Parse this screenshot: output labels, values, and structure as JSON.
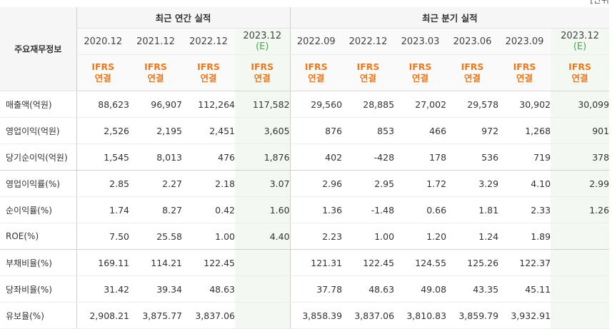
{
  "unit_note": "[단위",
  "corner_label": "주요재무정보",
  "groups": {
    "annual": "최근 연간 실적",
    "quarterly": "최근 분기 실적"
  },
  "periods": [
    {
      "date": "2020.12",
      "est": "",
      "type1": "IFRS",
      "type2": "연결"
    },
    {
      "date": "2021.12",
      "est": "",
      "type1": "IFRS",
      "type2": "연결"
    },
    {
      "date": "2022.12",
      "est": "",
      "type1": "IFRS",
      "type2": "연결"
    },
    {
      "date": "2023.12",
      "est": "(E)",
      "type1": "IFRS",
      "type2": "연결"
    },
    {
      "date": "2022.09",
      "est": "",
      "type1": "IFRS",
      "type2": "연결"
    },
    {
      "date": "2022.12",
      "est": "",
      "type1": "IFRS",
      "type2": "연결"
    },
    {
      "date": "2023.03",
      "est": "",
      "type1": "IFRS",
      "type2": "연결"
    },
    {
      "date": "2023.06",
      "est": "",
      "type1": "IFRS",
      "type2": "연결"
    },
    {
      "date": "2023.09",
      "est": "",
      "type1": "IFRS",
      "type2": "연결"
    },
    {
      "date": "2023.12",
      "est": "(E)",
      "type1": "IFRS",
      "type2": "연결"
    }
  ],
  "rows": [
    {
      "label": "매출액(억원)",
      "values": [
        "88,623",
        "96,907",
        "112,264",
        "117,582",
        "29,560",
        "28,885",
        "27,002",
        "29,578",
        "30,902",
        "30,099"
      ]
    },
    {
      "label": "영업이익(억원)",
      "values": [
        "2,526",
        "2,195",
        "2,451",
        "3,605",
        "876",
        "853",
        "466",
        "972",
        "1,268",
        "901"
      ]
    },
    {
      "label": "당기순이익(억원)",
      "values": [
        "1,545",
        "8,013",
        "476",
        "1,876",
        "402",
        "-428",
        "178",
        "536",
        "719",
        "378"
      ]
    },
    {
      "label": "영업이익률(%)",
      "values": [
        "2.85",
        "2.27",
        "2.18",
        "3.07",
        "2.96",
        "2.95",
        "1.72",
        "3.29",
        "4.10",
        "2.99"
      ]
    },
    {
      "label": "순이익률(%)",
      "values": [
        "1.74",
        "8.27",
        "0.42",
        "1.60",
        "1.36",
        "-1.48",
        "0.66",
        "1.81",
        "2.33",
        "1.26"
      ]
    },
    {
      "label": "ROE(%)",
      "values": [
        "7.50",
        "25.58",
        "1.00",
        "4.40",
        "2.23",
        "1.00",
        "1.20",
        "1.24",
        "1.89",
        ""
      ]
    },
    {
      "label": "부채비율(%)",
      "values": [
        "169.11",
        "114.21",
        "122.45",
        "",
        "121.31",
        "122.45",
        "124.55",
        "125.26",
        "122.37",
        ""
      ]
    },
    {
      "label": "당좌비율(%)",
      "values": [
        "31.42",
        "39.34",
        "48.63",
        "",
        "37.78",
        "48.63",
        "49.08",
        "43.35",
        "45.11",
        ""
      ]
    },
    {
      "label": "유보율(%)",
      "values": [
        "2,908.21",
        "3,875.77",
        "3,837.06",
        "",
        "3,858.39",
        "3,837.06",
        "3,810.83",
        "3,859.79",
        "3,932.91",
        ""
      ]
    }
  ],
  "colors": {
    "ifrs_text": "#e8791e",
    "estimate_bg": "#f3f9f2",
    "estimate_text": "#4aa64a",
    "negative": "#e02020",
    "header_bg": "#f6f6f6"
  }
}
